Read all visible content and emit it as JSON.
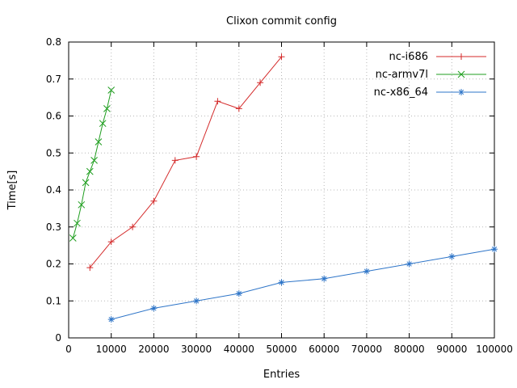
{
  "chart_data": {
    "type": "line",
    "title": "Clixon commit config",
    "xlabel": "Entries",
    "ylabel": "Time[s]",
    "xlim": [
      0,
      100000
    ],
    "ylim": [
      0,
      0.8
    ],
    "xticks": [
      0,
      10000,
      20000,
      30000,
      40000,
      50000,
      60000,
      70000,
      80000,
      90000,
      100000
    ],
    "yticks": [
      0,
      0.1,
      0.2,
      0.3,
      0.4,
      0.5,
      0.6,
      0.7,
      0.8
    ],
    "grid": true,
    "grid_color": "#b8b8b8",
    "legend_position": "top-right",
    "series": [
      {
        "name": "nc-i686",
        "color": "#d42a2a",
        "marker": "plus",
        "x": [
          5000,
          10000,
          15000,
          20000,
          25000,
          30000,
          35000,
          40000,
          45000,
          50000
        ],
        "y": [
          0.19,
          0.26,
          0.3,
          0.37,
          0.48,
          0.49,
          0.64,
          0.62,
          0.69,
          0.76
        ]
      },
      {
        "name": "nc-armv7l",
        "color": "#1f9e1f",
        "marker": "cross",
        "x": [
          1000,
          2000,
          3000,
          4000,
          5000,
          6000,
          7000,
          8000,
          9000,
          10000
        ],
        "y": [
          0.27,
          0.31,
          0.36,
          0.42,
          0.45,
          0.48,
          0.53,
          0.58,
          0.62,
          0.67
        ]
      },
      {
        "name": "nc-x86_64",
        "color": "#2e75c8",
        "marker": "star",
        "x": [
          10000,
          20000,
          30000,
          40000,
          50000,
          60000,
          70000,
          80000,
          90000,
          100000
        ],
        "y": [
          0.05,
          0.08,
          0.1,
          0.12,
          0.15,
          0.16,
          0.18,
          0.2,
          0.22,
          0.24
        ]
      }
    ]
  }
}
